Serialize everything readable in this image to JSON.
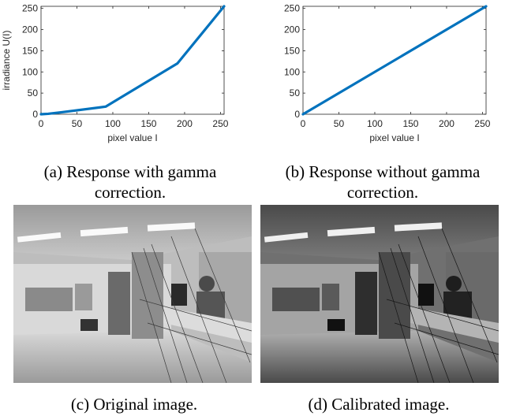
{
  "chart_data": [
    {
      "type": "line",
      "title": "",
      "xlabel": "pixel value I",
      "ylabel": "irradiance U(I)",
      "xlim": [
        0,
        255
      ],
      "ylim": [
        0,
        255
      ],
      "xticks": [
        0,
        50,
        100,
        150,
        200,
        250
      ],
      "yticks": [
        0,
        50,
        100,
        150,
        200,
        250
      ],
      "x": [
        0,
        10,
        30,
        90,
        190,
        255
      ],
      "y": [
        0,
        1,
        5,
        18,
        120,
        255
      ],
      "color": "#0072BD",
      "grid": false
    },
    {
      "type": "line",
      "title": "",
      "xlabel": "pixel value I",
      "ylabel": "",
      "xlim": [
        0,
        255
      ],
      "ylim": [
        0,
        255
      ],
      "xticks": [
        0,
        50,
        100,
        150,
        200,
        250
      ],
      "yticks": [
        0,
        50,
        100,
        150,
        200,
        250
      ],
      "x": [
        0,
        255
      ],
      "y": [
        0,
        255
      ],
      "color": "#0072BD",
      "grid": false
    }
  ],
  "captions": {
    "a": "(a) Response with gamma correction.",
    "b": "(b) Response without gamma correction.",
    "c": "(c) Original image.",
    "d": "(d) Calibrated image."
  }
}
